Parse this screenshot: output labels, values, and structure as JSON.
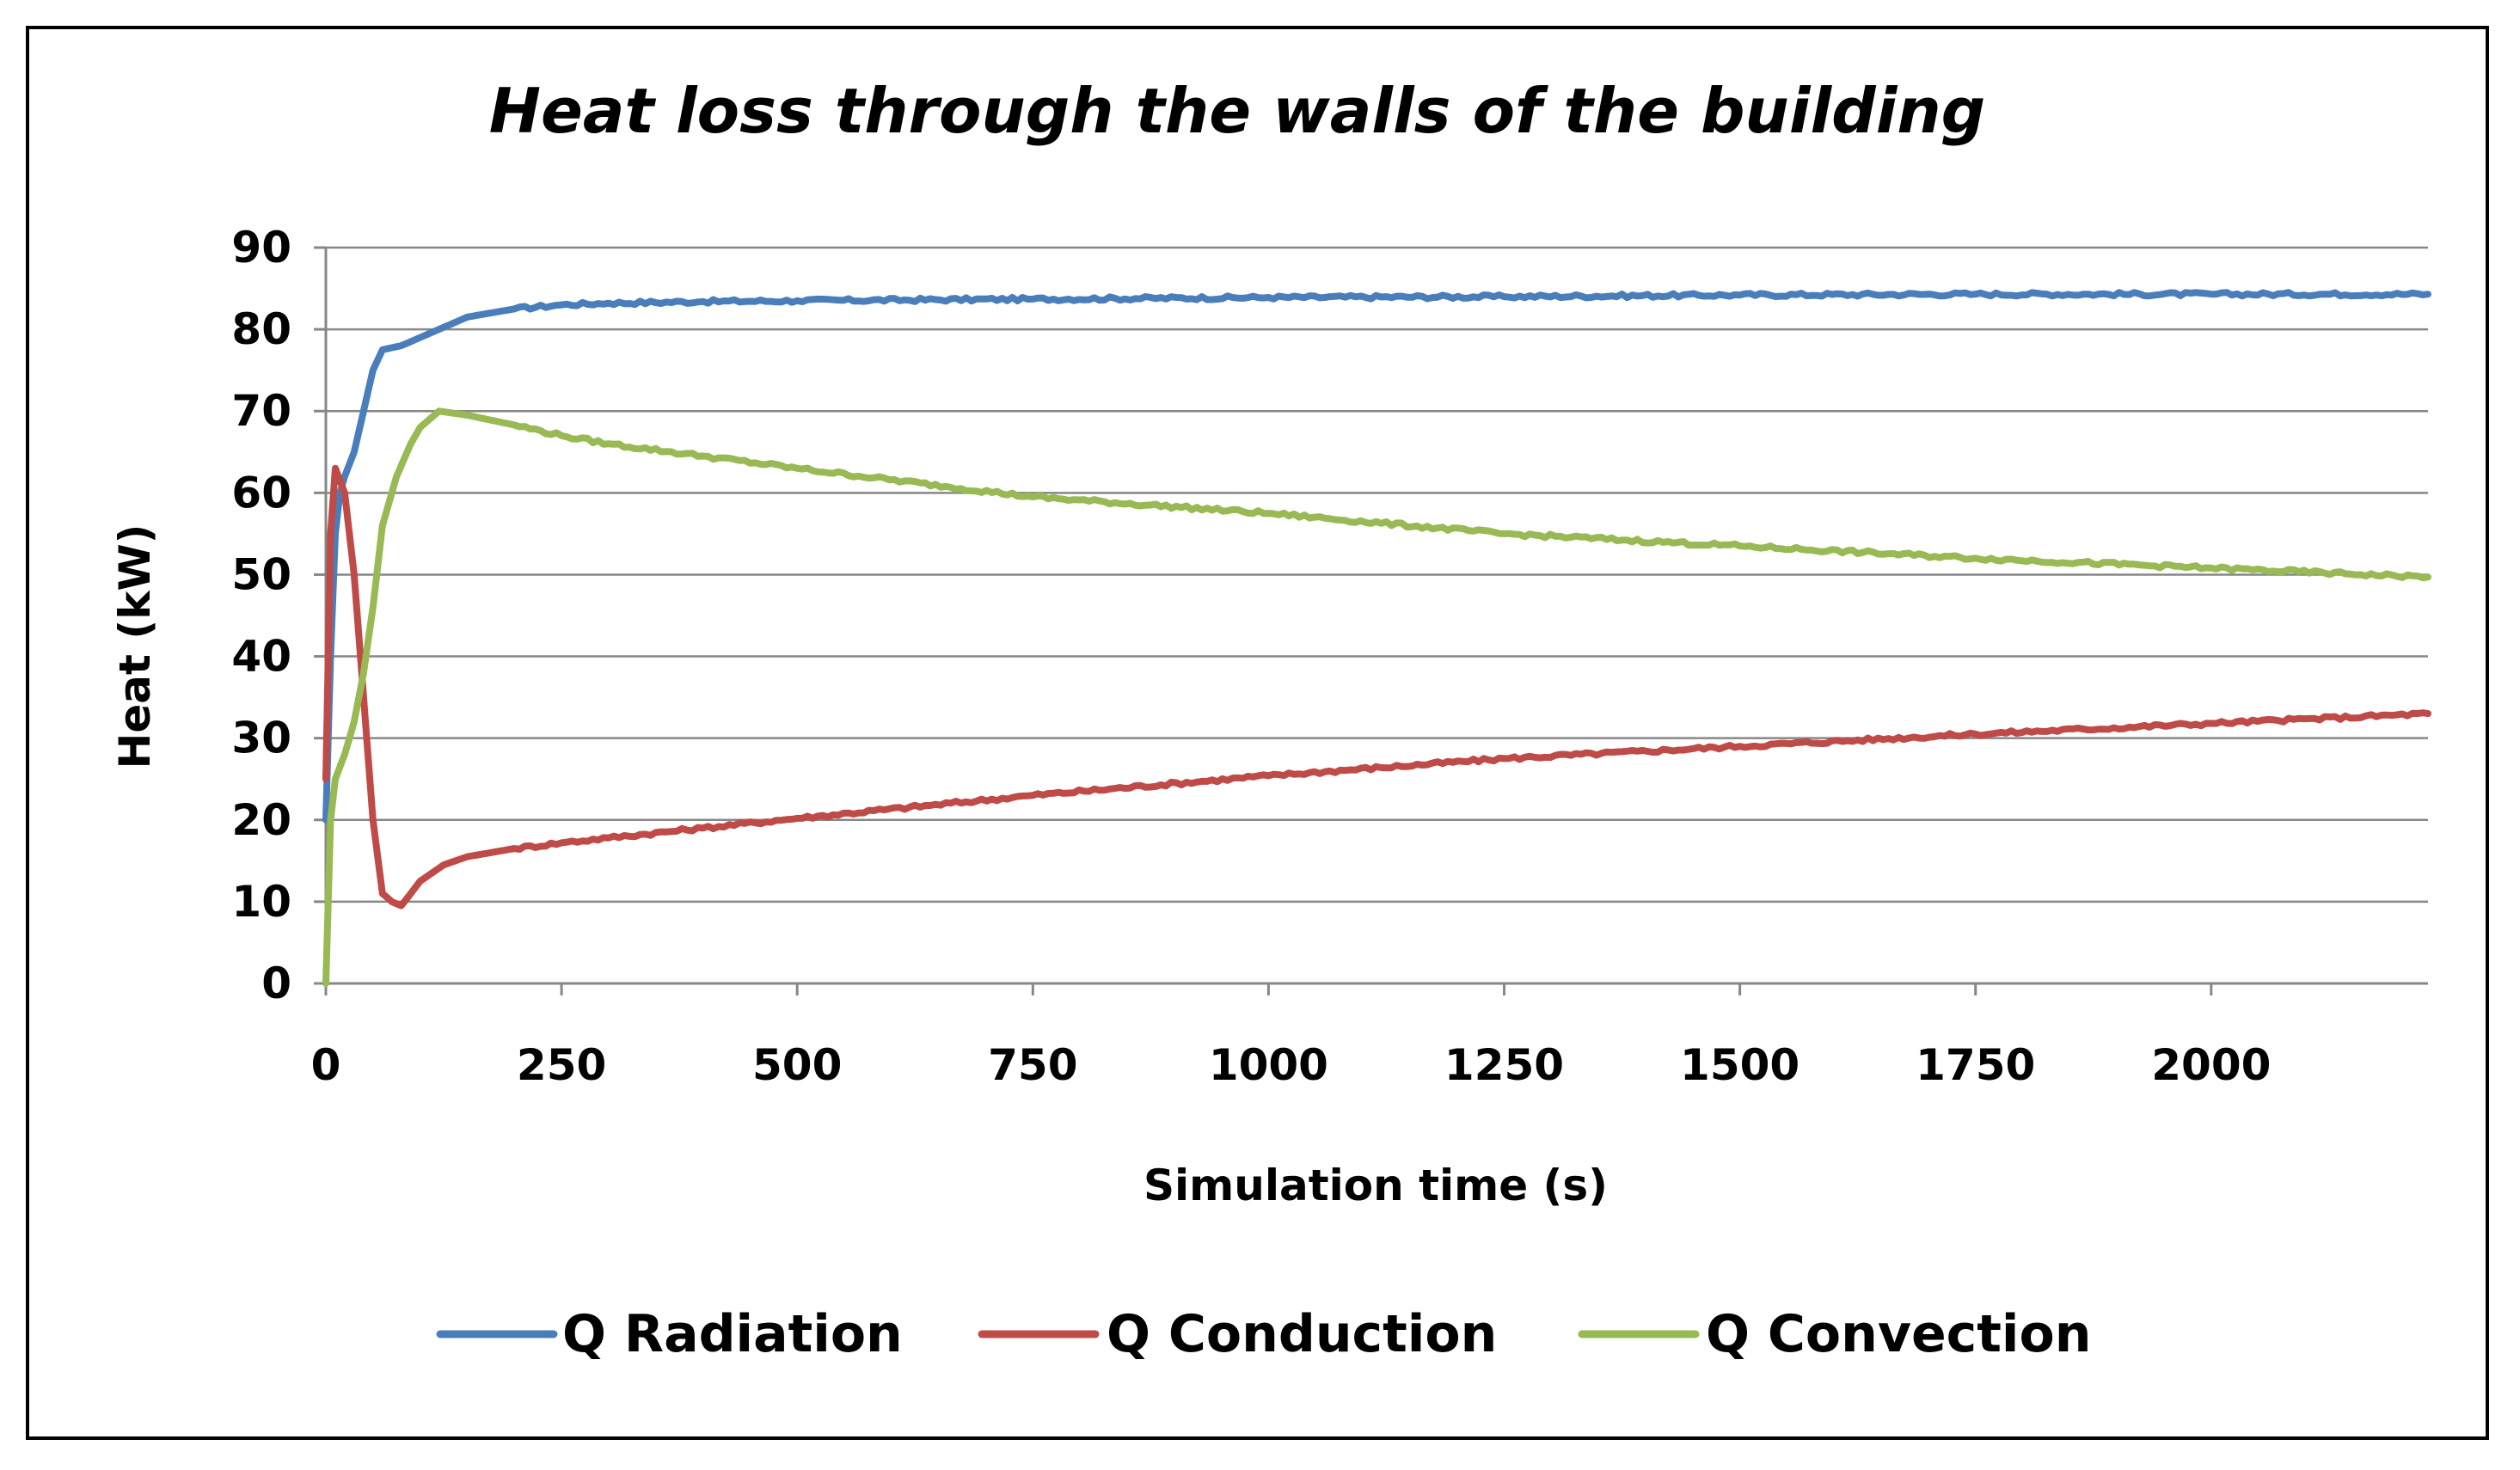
{
  "chart_data": {
    "type": "line",
    "title": "Heat loss through the walls of the building",
    "xlabel": "Simulation time (s)",
    "ylabel": "Heat (kW)",
    "xlim": [
      0,
      2230
    ],
    "ylim": [
      0,
      90
    ],
    "xticks": [
      0,
      250,
      500,
      750,
      1000,
      1250,
      1500,
      1750,
      2000
    ],
    "yticks": [
      0,
      10,
      20,
      30,
      40,
      50,
      60,
      70,
      80,
      90
    ],
    "grid": "horizontal",
    "legend_position": "bottom",
    "series": [
      {
        "name": "Q Radiation",
        "color": "#4a7ebb",
        "points": [
          [
            0,
            20
          ],
          [
            5,
            40
          ],
          [
            10,
            55
          ],
          [
            15,
            60
          ],
          [
            20,
            62
          ],
          [
            30,
            65
          ],
          [
            40,
            70
          ],
          [
            50,
            75
          ],
          [
            60,
            77.5
          ],
          [
            80,
            78
          ],
          [
            100,
            79
          ],
          [
            150,
            81.5
          ],
          [
            200,
            82.5
          ],
          [
            250,
            83
          ],
          [
            300,
            83.2
          ],
          [
            400,
            83.4
          ],
          [
            500,
            83.5
          ],
          [
            750,
            83.7
          ],
          [
            1000,
            83.9
          ],
          [
            1250,
            84
          ],
          [
            1500,
            84.2
          ],
          [
            1750,
            84.3
          ],
          [
            2000,
            84.3
          ],
          [
            2230,
            84.3
          ]
        ]
      },
      {
        "name": "Q Conduction",
        "color": "#be4b48",
        "points": [
          [
            0,
            25
          ],
          [
            5,
            55
          ],
          [
            10,
            63
          ],
          [
            20,
            60
          ],
          [
            30,
            50
          ],
          [
            40,
            35
          ],
          [
            50,
            20
          ],
          [
            60,
            11
          ],
          [
            70,
            10
          ],
          [
            80,
            9.5
          ],
          [
            90,
            11
          ],
          [
            100,
            12.5
          ],
          [
            125,
            14.5
          ],
          [
            150,
            15.5
          ],
          [
            200,
            16.5
          ],
          [
            250,
            17.2
          ],
          [
            300,
            17.8
          ],
          [
            400,
            19
          ],
          [
            500,
            20.2
          ],
          [
            750,
            23
          ],
          [
            1000,
            25.4
          ],
          [
            1250,
            27.5
          ],
          [
            1500,
            29
          ],
          [
            1750,
            30.5
          ],
          [
            2000,
            31.8
          ],
          [
            2230,
            33
          ]
        ]
      },
      {
        "name": "Q Convection",
        "color": "#98b954",
        "points": [
          [
            0,
            0
          ],
          [
            5,
            20
          ],
          [
            10,
            25
          ],
          [
            20,
            28
          ],
          [
            30,
            32
          ],
          [
            40,
            38
          ],
          [
            50,
            46
          ],
          [
            60,
            56
          ],
          [
            75,
            62
          ],
          [
            90,
            66
          ],
          [
            100,
            68
          ],
          [
            120,
            70
          ],
          [
            150,
            69.5
          ],
          [
            200,
            68.3
          ],
          [
            250,
            67
          ],
          [
            300,
            66
          ],
          [
            400,
            64.5
          ],
          [
            500,
            63
          ],
          [
            750,
            59.5
          ],
          [
            1000,
            57.5
          ],
          [
            1250,
            55
          ],
          [
            1500,
            53.5
          ],
          [
            1750,
            52
          ],
          [
            2000,
            50.8
          ],
          [
            2230,
            49.7
          ]
        ]
      }
    ]
  }
}
